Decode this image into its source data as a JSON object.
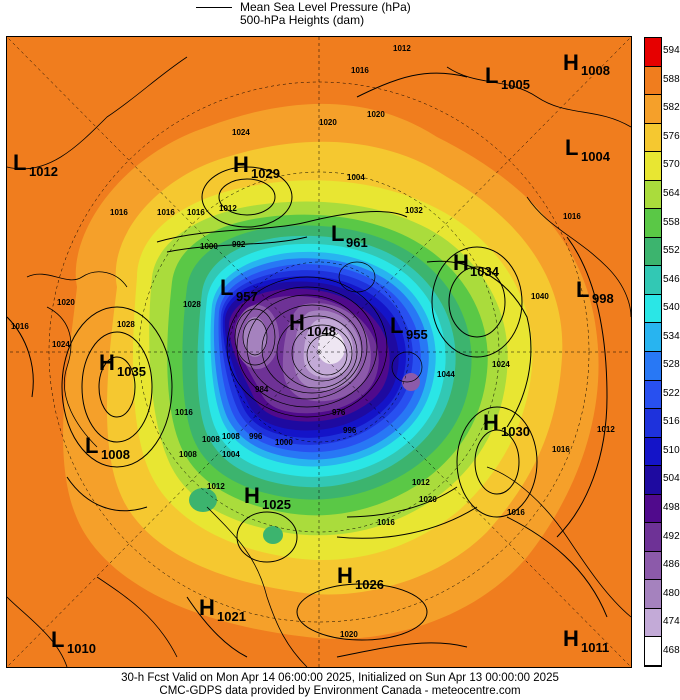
{
  "legend": {
    "line_label_1": "Mean Sea Level Pressure (hPa)",
    "line_label_2": "500-hPa Heights (dam)"
  },
  "colorbar": {
    "levels": [
      {
        "label": "594",
        "color": "#e60000"
      },
      {
        "label": "588",
        "color": "#f07d1e"
      },
      {
        "label": "582",
        "color": "#f5a02a"
      },
      {
        "label": "576",
        "color": "#f5c830"
      },
      {
        "label": "570",
        "color": "#e8e632"
      },
      {
        "label": "564",
        "color": "#aadc3c"
      },
      {
        "label": "558",
        "color": "#5ac846"
      },
      {
        "label": "552",
        "color": "#3cb46e"
      },
      {
        "label": "546",
        "color": "#32c8b4"
      },
      {
        "label": "540",
        "color": "#2ae6e6"
      },
      {
        "label": "534",
        "color": "#28b4f0"
      },
      {
        "label": "528",
        "color": "#2878f5"
      },
      {
        "label": "522",
        "color": "#2850f0"
      },
      {
        "label": "516",
        "color": "#1e32dc"
      },
      {
        "label": "510",
        "color": "#1414c8"
      },
      {
        "label": "504",
        "color": "#1e0aa0"
      },
      {
        "label": "498",
        "color": "#500a8c"
      },
      {
        "label": "492",
        "color": "#6e3296"
      },
      {
        "label": "486",
        "color": "#8c5aaa"
      },
      {
        "label": "480",
        "color": "#a582be"
      },
      {
        "label": "474",
        "color": "#c3aad7"
      },
      {
        "label": "468",
        "color": "#ffffff"
      }
    ]
  },
  "pressure_centers": [
    {
      "type": "L",
      "value": "1005"
    },
    {
      "type": "H",
      "value": "1008"
    },
    {
      "type": "L",
      "value": "1012"
    },
    {
      "type": "H",
      "value": "1029"
    },
    {
      "type": "L",
      "value": "1004"
    },
    {
      "type": "L",
      "value": "961"
    },
    {
      "type": "H",
      "value": "1034"
    },
    {
      "type": "L",
      "value": "957"
    },
    {
      "type": "H",
      "value": "1048"
    },
    {
      "type": "L",
      "value": "955"
    },
    {
      "type": "L",
      "value": "998"
    },
    {
      "type": "H",
      "value": "1035"
    },
    {
      "type": "H",
      "value": "1030"
    },
    {
      "type": "L",
      "value": "1008"
    },
    {
      "type": "H",
      "value": "1025"
    },
    {
      "type": "H",
      "value": "1026"
    },
    {
      "type": "H",
      "value": "1021"
    },
    {
      "type": "L",
      "value": "1010"
    },
    {
      "type": "H",
      "value": "1011"
    }
  ],
  "isobar_labels": [
    "1012",
    "1016",
    "1016",
    "1024",
    "1020",
    "1004",
    "1016",
    "1016",
    "1012",
    "1000",
    "992",
    "1020",
    "1028",
    "1024",
    "1016",
    "1016",
    "1008",
    "1012",
    "1016",
    "1012",
    "1020",
    "1016",
    "1024",
    "1040",
    "1044",
    "1016",
    "1012",
    "1016",
    "1008",
    "1020",
    "1020",
    "1028",
    "1008",
    "984",
    "976",
    "996",
    "1032",
    "1000",
    "996",
    "1004"
  ],
  "footer": {
    "line1": "30-h Fcst Valid on Mon Apr 14 06:00:00 2025, Initialized on Sun Apr 13 00:00:00 2025",
    "line2": "CMC-GDPS data provided by Environment Canada - meteocentre.com"
  }
}
